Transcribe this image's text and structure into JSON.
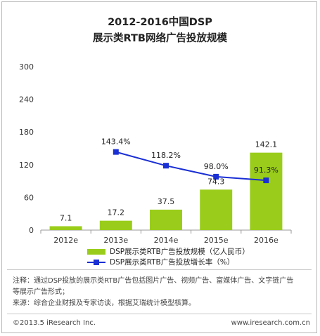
{
  "chart_data": {
    "type": "bar+line",
    "title": "2012-2016中国DSP",
    "subtitle": "展示类RTB网络广告投放规模",
    "categories": [
      "2012e",
      "2013e",
      "2014e",
      "2015e",
      "2016e"
    ],
    "series": [
      {
        "name": "DSP展示类RTB广告投放规模（亿人民币）",
        "type": "bar",
        "values": [
          7.1,
          17.2,
          37.5,
          74.3,
          142.1
        ],
        "labels": [
          "7.1",
          "17.2",
          "37.5",
          "74.3",
          "142.1"
        ],
        "color": "#9acd1b"
      },
      {
        "name": "DSP展示类RTB广告投放增长率（%）",
        "type": "line",
        "values": [
          null,
          143.4,
          118.2,
          98.0,
          91.3
        ],
        "labels": [
          "",
          "143.4%",
          "118.2%",
          "98.0%",
          "91.3%"
        ],
        "color": "#1a2fd4"
      }
    ],
    "yticks": [
      "300",
      "240",
      "180",
      "120",
      "60",
      "0"
    ],
    "ylim": [
      0,
      300
    ],
    "y2lim": [
      0,
      300
    ],
    "grid": false,
    "legend": "bottom"
  },
  "notes": {
    "line1": "注释：通过DSP投放的展示类RTB广告包括图片广告、视频广告、富媒体广告、文字链广告",
    "line2": "等展示广告形式；",
    "line3": "来源：综合企业财报及专家访谈，根据艾瑞统计模型核算。"
  },
  "footer": {
    "copyright": "©2013.5 iResearch Inc.",
    "website": "www.iresearch.com.cn"
  }
}
